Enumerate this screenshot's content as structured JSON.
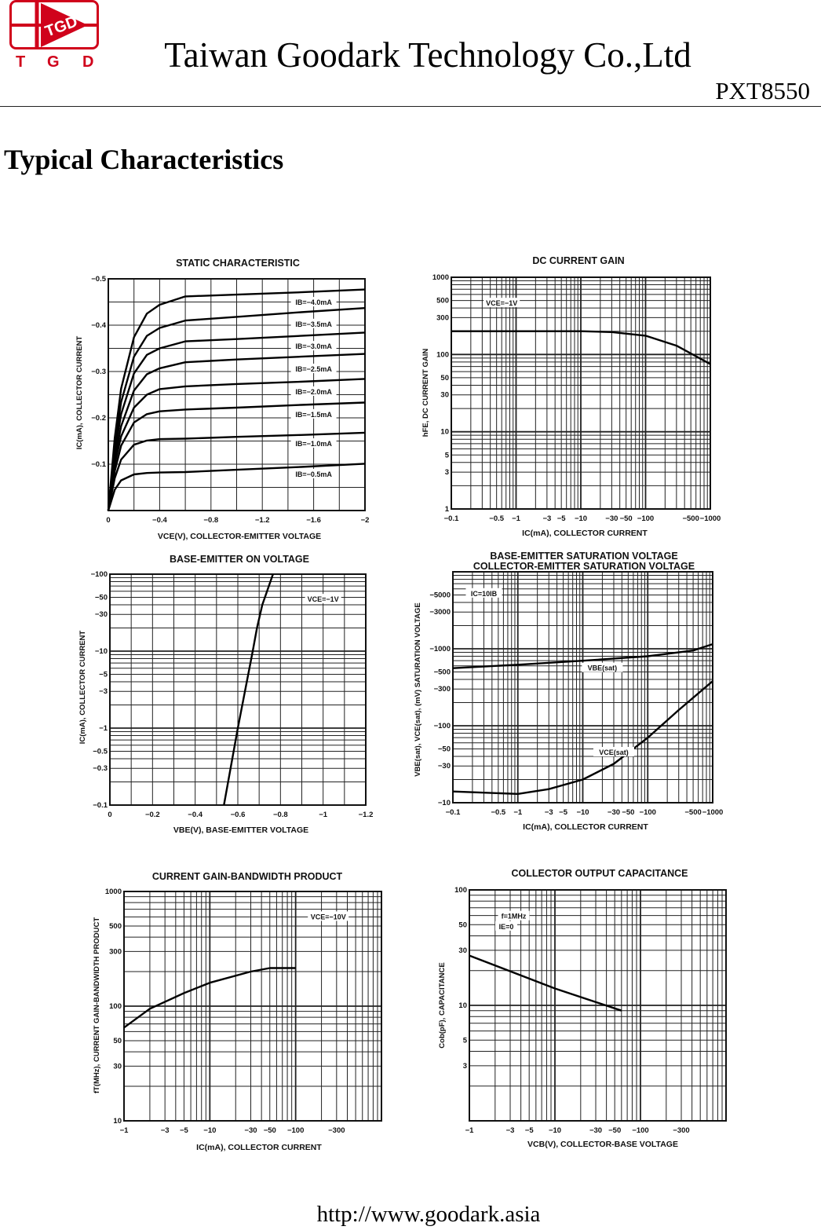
{
  "header": {
    "logo_text": "TGD",
    "logo_letters": [
      "T",
      "G",
      "D"
    ],
    "company": "Taiwan Goodark Technology Co.,Ltd",
    "part_number": "PXT8550",
    "brand_color": "#d0021b"
  },
  "section_title": "Typical Characteristics",
  "footer": {
    "url": "http://www.goodark.asia"
  },
  "chart_data": [
    {
      "type": "line",
      "title": [
        "STATIC CHARACTERISTIC"
      ],
      "xlabel": "VCE(V), COLLECTOR-EMITTER VOLTAGE",
      "ylabel": "IC(mA), COLLECTOR CURRENT",
      "xscale": "linear",
      "yscale": "linear",
      "xlim": [
        0,
        -2
      ],
      "ylim": [
        0,
        -0.5
      ],
      "grid": true,
      "xticks": [
        {
          "v": 0,
          "t": "0"
        },
        {
          "v": -0.4,
          "t": "−0.4"
        },
        {
          "v": -0.8,
          "t": "−0.8"
        },
        {
          "v": -1.2,
          "t": "−1.2"
        },
        {
          "v": -1.6,
          "t": "−1.6"
        },
        {
          "v": -2,
          "t": "−2"
        }
      ],
      "yticks": [
        {
          "v": -0.5,
          "t": "−0.5"
        },
        {
          "v": -0.4,
          "t": "−0.4"
        },
        {
          "v": -0.3,
          "t": "−0.3"
        },
        {
          "v": -0.2,
          "t": "−0.2"
        },
        {
          "v": -0.1,
          "t": "−0.1"
        }
      ],
      "x": [
        0,
        -0.05,
        -0.1,
        -0.2,
        -0.3,
        -0.4,
        -0.6,
        -1.0,
        -1.5,
        -2.0
      ],
      "series": [
        {
          "name": "IB=−4.0mA",
          "values": [
            0,
            -0.157,
            -0.263,
            -0.374,
            -0.425,
            -0.444,
            -0.462,
            -0.466,
            -0.471,
            -0.477
          ]
        },
        {
          "name": "IB=−3.5mA",
          "values": [
            0,
            -0.139,
            -0.234,
            -0.332,
            -0.377,
            -0.394,
            -0.41,
            -0.418,
            -0.428,
            -0.437
          ]
        },
        {
          "name": "IB=−3.0mA",
          "values": [
            0,
            -0.124,
            -0.208,
            -0.296,
            -0.336,
            -0.35,
            -0.365,
            -0.37,
            -0.377,
            -0.384
          ]
        },
        {
          "name": "IB=−2.5mA",
          "values": [
            0,
            -0.109,
            -0.182,
            -0.259,
            -0.294,
            -0.307,
            -0.32,
            -0.326,
            -0.332,
            -0.338
          ]
        },
        {
          "name": "IB=−2.0mA",
          "values": [
            0,
            -0.1,
            -0.16,
            -0.222,
            -0.25,
            -0.262,
            -0.268,
            -0.273,
            -0.278,
            -0.284
          ]
        },
        {
          "name": "IB=−1.5mA",
          "values": [
            0,
            -0.085,
            -0.14,
            -0.19,
            -0.208,
            -0.214,
            -0.218,
            -0.222,
            -0.228,
            -0.233
          ]
        },
        {
          "name": "IB=−1.0mA",
          "values": [
            0,
            -0.07,
            -0.11,
            -0.142,
            -0.151,
            -0.154,
            -0.155,
            -0.159,
            -0.163,
            -0.168
          ]
        },
        {
          "name": "IB=−0.5mA",
          "values": [
            0,
            -0.045,
            -0.065,
            -0.078,
            -0.081,
            -0.082,
            -0.083,
            -0.088,
            -0.094,
            -0.101
          ]
        }
      ],
      "annotations": [
        {
          "t": "IB=−4.0mA",
          "at": [
            -1.6,
            -0.449
          ]
        },
        {
          "t": "IB=−3.5mA",
          "at": [
            -1.6,
            -0.402
          ]
        },
        {
          "t": "IB=−3.0mA",
          "at": [
            -1.6,
            -0.354
          ]
        },
        {
          "t": "IB=−2.5mA",
          "at": [
            -1.6,
            -0.305
          ]
        },
        {
          "t": "IB=−2.0mA",
          "at": [
            -1.6,
            -0.256
          ]
        },
        {
          "t": "IB=−1.5mA",
          "at": [
            -1.6,
            -0.207
          ]
        },
        {
          "t": "IB=−1.0mA",
          "at": [
            -1.6,
            -0.144
          ]
        },
        {
          "t": "IB=−0.5mA",
          "at": [
            -1.6,
            -0.078
          ]
        }
      ]
    },
    {
      "type": "line",
      "title": [
        "DC CURRENT GAIN"
      ],
      "xlabel": "IC(mA), COLLECTOR CURRENT",
      "ylabel": "hFE, DC CURRENT GAIN",
      "xscale": "log",
      "yscale": "log",
      "xlim": [
        -0.1,
        -1000
      ],
      "ylim": [
        1,
        1000
      ],
      "grid": true,
      "xticks": [
        {
          "v": -0.1,
          "t": "−0.1"
        },
        {
          "v": -0.5,
          "t": "−0.5"
        },
        {
          "v": -1,
          "t": "−1"
        },
        {
          "v": -3,
          "t": "−3"
        },
        {
          "v": -5,
          "t": "−5"
        },
        {
          "v": -10,
          "t": "−10"
        },
        {
          "v": -30,
          "t": "−30"
        },
        {
          "v": -50,
          "t": "−50"
        },
        {
          "v": -100,
          "t": "−100"
        },
        {
          "v": -500,
          "t": "−500"
        },
        {
          "v": -1000,
          "t": "−1000"
        }
      ],
      "yticks": [
        {
          "v": 1000,
          "t": "1000"
        },
        {
          "v": 500,
          "t": "500"
        },
        {
          "v": 300,
          "t": "300"
        },
        {
          "v": 100,
          "t": "100"
        },
        {
          "v": 50,
          "t": "50"
        },
        {
          "v": 30,
          "t": "30"
        },
        {
          "v": 10,
          "t": "10"
        },
        {
          "v": 5,
          "t": "5"
        },
        {
          "v": 3,
          "t": "3"
        },
        {
          "v": 1,
          "t": "1"
        }
      ],
      "series": [
        {
          "points": [
            [
              -0.1,
              200
            ],
            [
              -1,
              200
            ],
            [
              -10,
              200
            ],
            [
              -30,
              195
            ],
            [
              -100,
              175
            ],
            [
              -300,
              130
            ],
            [
              -1000,
              75
            ]
          ]
        }
      ],
      "annotations": [
        {
          "t": "VCE=−1V",
          "at": [
            -0.6,
            460
          ]
        }
      ]
    },
    {
      "type": "line",
      "title": [
        "BASE-EMITTER ON VOLTAGE"
      ],
      "xlabel": "VBE(V), BASE-EMITTER VOLTAGE",
      "ylabel": "IC(mA), COLLECTOR CURRENT",
      "xscale": "linear",
      "yscale": "log",
      "xlim": [
        0,
        -1.2
      ],
      "ylim": [
        -0.1,
        -100
      ],
      "grid": true,
      "xticks": [
        {
          "v": 0,
          "t": "0"
        },
        {
          "v": -0.2,
          "t": "−0.2"
        },
        {
          "v": -0.4,
          "t": "−0.4"
        },
        {
          "v": -0.6,
          "t": "−0.6"
        },
        {
          "v": -0.8,
          "t": "−0.8"
        },
        {
          "v": -1,
          "t": "−1"
        },
        {
          "v": -1.2,
          "t": "−1.2"
        }
      ],
      "yticks": [
        {
          "v": -100,
          "t": "−100"
        },
        {
          "v": -50,
          "t": "−50"
        },
        {
          "v": -30,
          "t": "−30"
        },
        {
          "v": -10,
          "t": "−10"
        },
        {
          "v": -5,
          "t": "−5"
        },
        {
          "v": -3,
          "t": "−3"
        },
        {
          "v": -1,
          "t": "−1"
        },
        {
          "v": -0.5,
          "t": "−0.5"
        },
        {
          "v": -0.3,
          "t": "−0.3"
        },
        {
          "v": -0.1,
          "t": "−0.1"
        }
      ],
      "series": [
        {
          "points": [
            [
              -0.535,
              -0.1
            ],
            [
              -0.6,
              -1
            ],
            [
              -0.67,
              -10
            ],
            [
              -0.69,
              -20
            ],
            [
              -0.715,
              -40
            ],
            [
              -0.765,
              -100
            ]
          ]
        }
      ],
      "annotations": [
        {
          "t": "VCE=−1V",
          "at": [
            -1.0,
            -47
          ]
        }
      ]
    },
    {
      "type": "line",
      "title": [
        "BASE-EMITTER SATURATION VOLTAGE",
        "COLLECTOR-EMITTER SATURATION VOLTAGE"
      ],
      "xlabel": "IC(mA), COLLECTOR CURRENT",
      "ylabel": "VBE(sat), VCE(sat), (mV) SATURATION VOLTAGE",
      "xscale": "log",
      "yscale": "log",
      "xlim": [
        -0.1,
        -1000
      ],
      "ylim": [
        -10,
        -10000
      ],
      "grid": true,
      "xticks": [
        {
          "v": -0.1,
          "t": "−0.1"
        },
        {
          "v": -0.5,
          "t": "−0.5"
        },
        {
          "v": -1,
          "t": "−1"
        },
        {
          "v": -3,
          "t": "−3"
        },
        {
          "v": -5,
          "t": "−5"
        },
        {
          "v": -10,
          "t": "−10"
        },
        {
          "v": -30,
          "t": "−30"
        },
        {
          "v": -50,
          "t": "−50"
        },
        {
          "v": -100,
          "t": "−100"
        },
        {
          "v": -500,
          "t": "−500"
        },
        {
          "v": -1000,
          "t": "−1000"
        }
      ],
      "yticks": [
        {
          "v": -5000,
          "t": "−5000"
        },
        {
          "v": -3000,
          "t": "−3000"
        },
        {
          "v": -1000,
          "t": "−1000"
        },
        {
          "v": -500,
          "t": "−500"
        },
        {
          "v": -300,
          "t": "−300"
        },
        {
          "v": -100,
          "t": "−100"
        },
        {
          "v": -50,
          "t": "−50"
        },
        {
          "v": -30,
          "t": "−30"
        },
        {
          "v": -10,
          "t": "−10"
        }
      ],
      "series": [
        {
          "name": "VBE(sat)",
          "points": [
            [
              -0.1,
              -560
            ],
            [
              -1,
              -620
            ],
            [
              -10,
              -700
            ],
            [
              -100,
              -800
            ],
            [
              -500,
              -950
            ],
            [
              -1000,
              -1150
            ]
          ]
        },
        {
          "name": "VCE(sat)",
          "points": [
            [
              -0.1,
              -14
            ],
            [
              -1,
              -13
            ],
            [
              -3,
              -15
            ],
            [
              -10,
              -20
            ],
            [
              -30,
              -32
            ],
            [
              -100,
              -70
            ],
            [
              -300,
              -160
            ],
            [
              -1000,
              -380
            ]
          ]
        }
      ],
      "annotations": [
        {
          "t": "IC=10IB",
          "at": [
            -0.3,
            -5200
          ]
        },
        {
          "t": "VBE(sat)",
          "at": [
            -20,
            -560
          ]
        },
        {
          "t": "VCE(sat)",
          "at": [
            -30,
            -45
          ]
        }
      ]
    },
    {
      "type": "line",
      "title": [
        "CURRENT GAIN-BANDWIDTH PRODUCT"
      ],
      "xlabel": "IC(mA), COLLECTOR CURRENT",
      "ylabel": "fT(MHz), CURRENT GAIN-BANDWIDTH PRODUCT",
      "xscale": "log",
      "yscale": "log",
      "xlim": [
        -1,
        -1000
      ],
      "ylim": [
        10,
        1000
      ],
      "grid": true,
      "xticks": [
        {
          "v": -1,
          "t": "−1"
        },
        {
          "v": -3,
          "t": "−3"
        },
        {
          "v": -5,
          "t": "−5"
        },
        {
          "v": -10,
          "t": "−10"
        },
        {
          "v": -30,
          "t": "−30"
        },
        {
          "v": -50,
          "t": "−50"
        },
        {
          "v": -100,
          "t": "−100"
        },
        {
          "v": -300,
          "t": "−300"
        }
      ],
      "yticks": [
        {
          "v": 1000,
          "t": "1000"
        },
        {
          "v": 500,
          "t": "500"
        },
        {
          "v": 300,
          "t": "300"
        },
        {
          "v": 100,
          "t": "100"
        },
        {
          "v": 50,
          "t": "50"
        },
        {
          "v": 30,
          "t": "30"
        },
        {
          "v": 10,
          "t": "10"
        }
      ],
      "series": [
        {
          "points": [
            [
              -1,
              65
            ],
            [
              -2,
              95
            ],
            [
              -5,
              130
            ],
            [
              -10,
              160
            ],
            [
              -30,
              200
            ],
            [
              -50,
              215
            ],
            [
              -100,
              215
            ]
          ]
        }
      ],
      "annotations": [
        {
          "t": "VCE=−10V",
          "at": [
            -240,
            600
          ]
        }
      ]
    },
    {
      "type": "line",
      "title": [
        "COLLECTOR OUTPUT CAPACITANCE"
      ],
      "xlabel": "VCB(V), COLLECTOR-BASE VOLTAGE",
      "ylabel": "Cob(pF), CAPACITANCE",
      "xscale": "log",
      "yscale": "log",
      "xlim": [
        -1,
        -1000
      ],
      "ylim": [
        1,
        100
      ],
      "grid": true,
      "xticks": [
        {
          "v": -1,
          "t": "−1"
        },
        {
          "v": -3,
          "t": "−3"
        },
        {
          "v": -5,
          "t": "−5"
        },
        {
          "v": -10,
          "t": "−10"
        },
        {
          "v": -30,
          "t": "−30"
        },
        {
          "v": -50,
          "t": "−50"
        },
        {
          "v": -100,
          "t": "−100"
        },
        {
          "v": -300,
          "t": "−300"
        }
      ],
      "yticks": [
        {
          "v": 100,
          "t": "100"
        },
        {
          "v": 50,
          "t": "50"
        },
        {
          "v": 30,
          "t": "30"
        },
        {
          "v": 10,
          "t": "10"
        },
        {
          "v": 5,
          "t": "5"
        },
        {
          "v": 3,
          "t": "3"
        }
      ],
      "series": [
        {
          "points": [
            [
              -1,
              27
            ],
            [
              -10,
              14
            ],
            [
              -60,
              9
            ]
          ]
        }
      ],
      "annotations": [
        {
          "t": "f=1MHz",
          "at": [
            -3.3,
            59
          ]
        },
        {
          "t": "IE=0",
          "at": [
            -2.7,
            48
          ]
        }
      ]
    }
  ]
}
